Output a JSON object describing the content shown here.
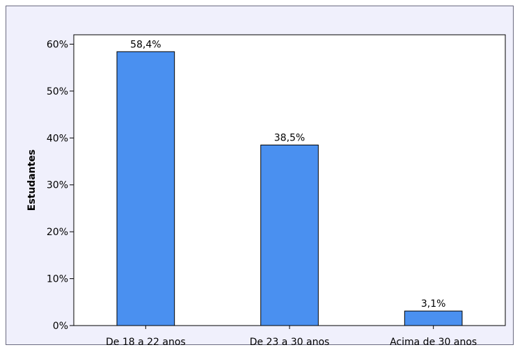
{
  "chart_data": {
    "type": "bar",
    "categories": [
      "De 18 a 22 anos",
      "De 23 a 30 anos",
      "Acima de 30 anos"
    ],
    "values": [
      58.4,
      38.5,
      3.1
    ],
    "data_labels": [
      "58,4%",
      "38,5%",
      "3,1%"
    ],
    "title": "",
    "xlabel": "",
    "ylabel": "Estudantes",
    "ylim": [
      0,
      62
    ],
    "yticks": [
      0,
      10,
      20,
      30,
      40,
      50,
      60
    ],
    "ytick_labels": [
      "0%",
      "10%",
      "20%",
      "30%",
      "40%",
      "50%",
      "60%"
    ],
    "grid": false,
    "legend": "none",
    "colors": {
      "bar_fill": "#4a90f0",
      "bar_stroke": "#000000",
      "plot_background": "#ffffff",
      "frame_background": "#f0f0fc"
    }
  }
}
